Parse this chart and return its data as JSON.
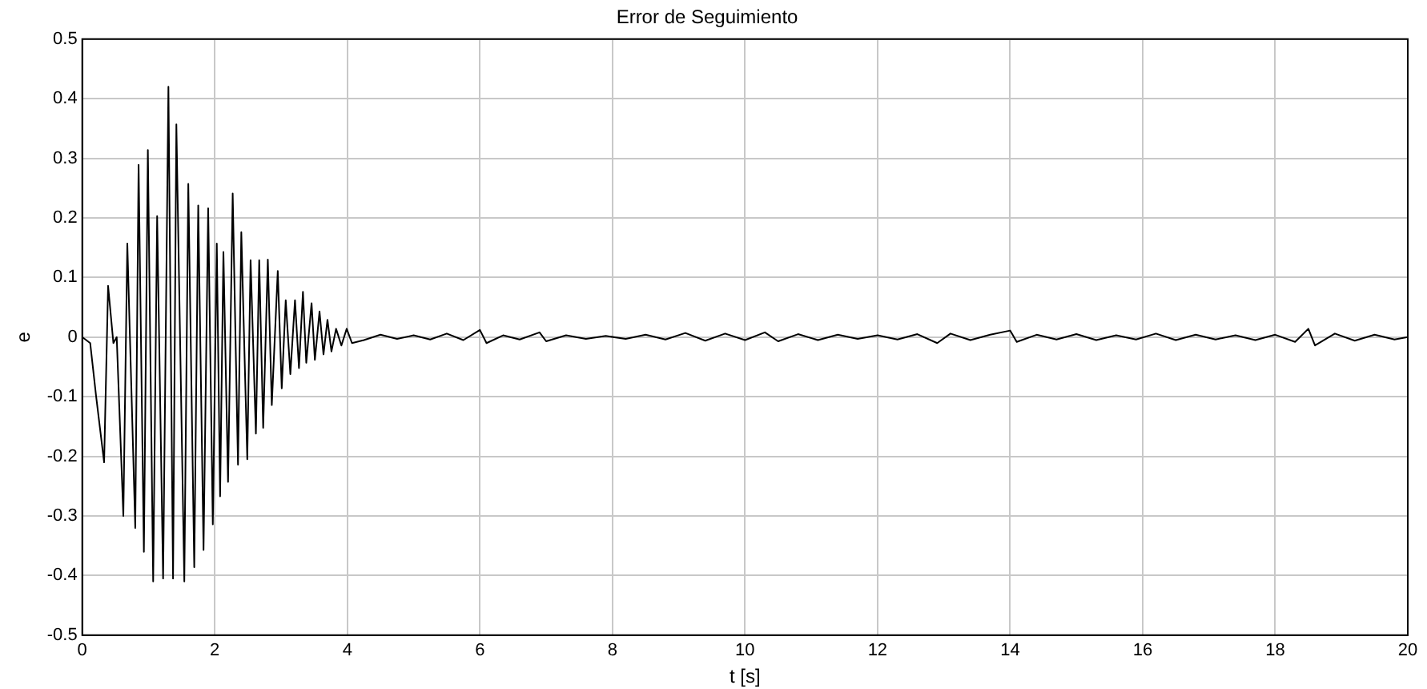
{
  "chart_data": {
    "type": "line",
    "title": "Error de Seguimiento",
    "xlabel": "t [s]",
    "ylabel": "e",
    "xlim": [
      0,
      20
    ],
    "xticks": [
      0,
      2,
      4,
      6,
      8,
      10,
      12,
      14,
      16,
      18,
      20
    ],
    "ylim": [
      -0.5,
      0.5
    ],
    "yticks": [
      -0.5,
      -0.4,
      -0.3,
      -0.2,
      -0.1,
      0,
      0.1,
      0.2,
      0.3,
      0.4,
      0.5
    ],
    "grid": true,
    "marker": "none",
    "line_style": "solid",
    "series": [
      {
        "color": "#000000",
        "x": [
          0,
          0.12,
          0.21,
          0.33,
          0.39,
          0.47,
          0.52,
          0.62,
          0.68,
          0.8,
          0.85,
          0.93,
          0.99,
          1.07,
          1.13,
          1.22,
          1.3,
          1.37,
          1.42,
          1.54,
          1.6,
          1.69,
          1.75,
          1.83,
          1.9,
          1.97,
          2.03,
          2.08,
          2.13,
          2.2,
          2.27,
          2.35,
          2.4,
          2.49,
          2.54,
          2.62,
          2.67,
          2.73,
          2.8,
          2.86,
          2.95,
          3.01,
          3.07,
          3.14,
          3.21,
          3.27,
          3.33,
          3.38,
          3.46,
          3.51,
          3.58,
          3.64,
          3.7,
          3.76,
          3.83,
          3.91,
          3.99,
          4.07,
          4.25,
          4.5,
          4.75,
          5,
          5.25,
          5.5,
          5.75,
          6,
          6.1,
          6.35,
          6.6,
          6.9,
          7,
          7.3,
          7.6,
          7.9,
          8.2,
          8.5,
          8.8,
          9.1,
          9.4,
          9.7,
          10,
          10.3,
          10.5,
          10.8,
          11.1,
          11.4,
          11.7,
          12,
          12.3,
          12.6,
          12.9,
          13.1,
          13.4,
          13.7,
          14,
          14.1,
          14.4,
          14.7,
          15,
          15.3,
          15.6,
          15.9,
          16.2,
          16.5,
          16.8,
          17.1,
          17.4,
          17.7,
          18,
          18.3,
          18.5,
          18.6,
          18.9,
          19.2,
          19.5,
          19.8,
          20
        ],
        "values": [
          0,
          -0.01,
          -0.1,
          -0.21,
          0.086,
          -0.01,
          0,
          -0.3,
          0.157,
          -0.32,
          0.289,
          -0.36,
          0.314,
          -0.41,
          0.203,
          -0.405,
          0.42,
          -0.405,
          0.357,
          -0.41,
          0.257,
          -0.386,
          0.221,
          -0.357,
          0.216,
          -0.314,
          0.157,
          -0.267,
          0.143,
          -0.243,
          0.241,
          -0.214,
          0.176,
          -0.205,
          0.129,
          -0.162,
          0.129,
          -0.152,
          0.13,
          -0.114,
          0.111,
          -0.086,
          0.062,
          -0.062,
          0.062,
          -0.052,
          0.076,
          -0.043,
          0.057,
          -0.038,
          0.043,
          -0.029,
          0.029,
          -0.024,
          0.014,
          -0.014,
          0.014,
          -0.01,
          -0.005,
          0.004,
          -0.003,
          0.003,
          -0.004,
          0.006,
          -0.005,
          0.012,
          -0.01,
          0.003,
          -0.004,
          0.008,
          -0.007,
          0.003,
          -0.003,
          0.002,
          -0.003,
          0.004,
          -0.004,
          0.007,
          -0.006,
          0.006,
          -0.005,
          0.008,
          -0.007,
          0.005,
          -0.005,
          0.004,
          -0.003,
          0.003,
          -0.004,
          0.005,
          -0.01,
          0.006,
          -0.005,
          0.004,
          0.011,
          -0.008,
          0.004,
          -0.004,
          0.005,
          -0.005,
          0.003,
          -0.004,
          0.006,
          -0.005,
          0.004,
          -0.004,
          0.003,
          -0.005,
          0.004,
          -0.008,
          0.014,
          -0.014,
          0.006,
          -0.006,
          0.004,
          -0.004,
          0
        ]
      }
    ]
  }
}
